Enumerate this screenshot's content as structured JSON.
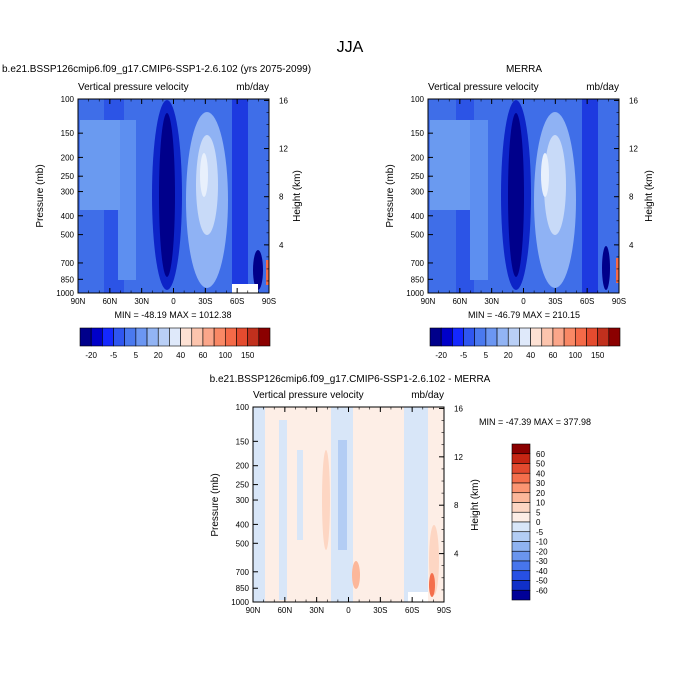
{
  "figure": {
    "title": "JJA"
  },
  "panels": [
    {
      "title": "b.e21.BSSP126cmip6.f09_g17.CMIP6-SSP1-2.6.102 (yrs 2075-2099)",
      "left_label": "Vertical pressure velocity",
      "right_label": "mb/day",
      "ylabel": "Pressure (mb)",
      "y2label": "Height (km)",
      "stats": "MIN = -48.19   MAX = 1012.38",
      "palette": "blues"
    },
    {
      "title": "MERRA",
      "left_label": "Vertical pressure velocity",
      "right_label": "mb/day",
      "ylabel": "Pressure (mb)",
      "y2label": "Height (km)",
      "stats": "MIN = -46.79   MAX = 210.15",
      "palette": "blues"
    },
    {
      "title": "b.e21.BSSP126cmip6.f09_g17.CMIP6-SSP1-2.6.102 - MERRA",
      "left_label": "Vertical pressure velocity",
      "right_label": "mb/day",
      "ylabel": "Pressure (mb)",
      "y2label": "Height (km)",
      "stats": "MIN = -47.39   MAX = 377.98",
      "palette": "diff"
    }
  ],
  "axes": {
    "x_ticks": [
      "90N",
      "60N",
      "30N",
      "0",
      "30S",
      "60S",
      "90S"
    ],
    "x_values": [
      90,
      60,
      30,
      0,
      -30,
      -60,
      -90
    ],
    "p_ticks": [
      "100",
      "150",
      "200",
      "250",
      "300",
      "400",
      "500",
      "700",
      "850",
      "1000"
    ],
    "p_values": [
      100,
      150,
      200,
      250,
      300,
      400,
      500,
      700,
      850,
      1000
    ],
    "h_ticks": [
      "16",
      "12",
      "8",
      "4"
    ],
    "h_values": [
      16,
      12,
      8,
      4
    ]
  },
  "colorbars": {
    "main": {
      "labels": [
        "-20",
        "-5",
        "5",
        "20",
        "40",
        "60",
        "100",
        "150"
      ],
      "colors": [
        "#00008b",
        "#0000c8",
        "#1428ff",
        "#2f56f0",
        "#4a79ef",
        "#6b96f2",
        "#92b4f4",
        "#b9cff6",
        "#dfe9fa",
        "#fde1d4",
        "#fcc4ad",
        "#fba68a",
        "#f98865",
        "#f46a48",
        "#e44b2f",
        "#c1301d",
        "#8b0000"
      ]
    },
    "diff": {
      "labels": [
        "60",
        "50",
        "40",
        "30",
        "20",
        "10",
        "5",
        "0",
        "-5",
        "-10",
        "-20",
        "-30",
        "-40",
        "-50",
        "-60"
      ],
      "colors": [
        "#8b0000",
        "#c52513",
        "#e24a2f",
        "#f46f4c",
        "#fb9572",
        "#fcb79a",
        "#fdd6c3",
        "#fdeee6",
        "#d8e6f8",
        "#b3cdf4",
        "#8fb3f1",
        "#6a95ee",
        "#4775ec",
        "#2750e4",
        "#1030c8",
        "#000098"
      ]
    }
  }
}
